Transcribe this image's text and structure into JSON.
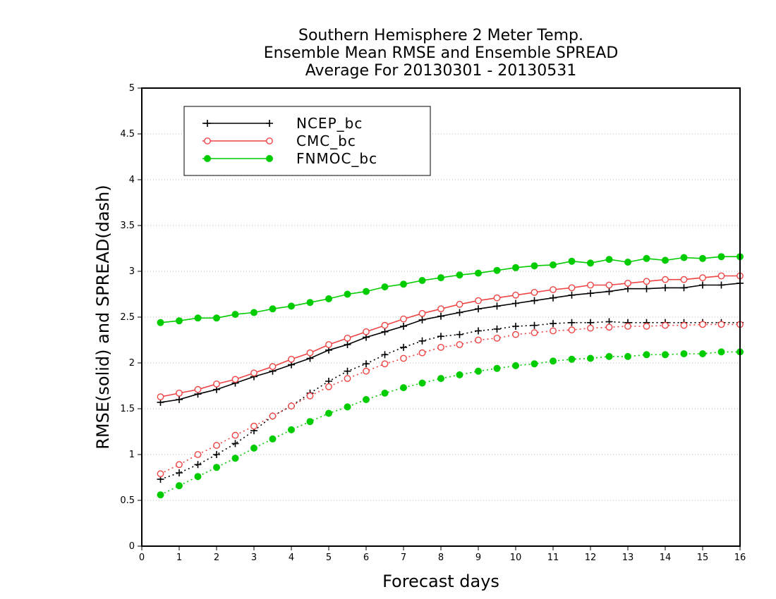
{
  "chart_data": {
    "type": "line",
    "title_lines": [
      "Southern Hemisphere 2 Meter Temp.",
      "Ensemble Mean RMSE and Ensemble SPREAD",
      "Average For 20130301 - 20130531"
    ],
    "xlabel": "Forecast days",
    "ylabel": "RMSE(solid) and SPREAD(dash)",
    "xlim": [
      0,
      16
    ],
    "ylim": [
      0,
      5
    ],
    "xticks": [
      0,
      1,
      2,
      3,
      4,
      5,
      6,
      7,
      8,
      9,
      10,
      11,
      12,
      13,
      14,
      15,
      16
    ],
    "xtick_labels": [
      "0",
      "1",
      "2",
      "3",
      "4",
      "5",
      "6",
      "7",
      "8",
      "9",
      "10",
      "11",
      "12",
      "13",
      "14",
      "15",
      "16"
    ],
    "yticks": [
      0,
      0.5,
      1,
      1.5,
      2,
      2.5,
      3,
      3.5,
      4,
      4.5,
      5
    ],
    "ytick_labels": [
      "0",
      "0.5",
      "1",
      "1.5",
      "2",
      "2.5",
      "3",
      "3.5",
      "4",
      "4.5",
      "5"
    ],
    "grid": "horizontal dotted",
    "legend_position": "top-left",
    "x": [
      0.5,
      1,
      1.5,
      2,
      2.5,
      3,
      3.5,
      4,
      4.5,
      5,
      5.5,
      6,
      6.5,
      7,
      7.5,
      8,
      8.5,
      9,
      9.5,
      10,
      10.5,
      11,
      11.5,
      12,
      12.5,
      13,
      13.5,
      14,
      14.5,
      15,
      15.5,
      16
    ],
    "series": [
      {
        "name": "NCEP_bc",
        "color": "#000000",
        "marker": "plus",
        "rmse": [
          1.57,
          1.6,
          1.66,
          1.71,
          1.78,
          1.85,
          1.91,
          1.98,
          2.05,
          2.14,
          2.2,
          2.28,
          2.34,
          2.4,
          2.47,
          2.51,
          2.55,
          2.59,
          2.62,
          2.65,
          2.68,
          2.71,
          2.74,
          2.76,
          2.78,
          2.81,
          2.81,
          2.82,
          2.82,
          2.85,
          2.85,
          2.87
        ],
        "spread": [
          0.73,
          0.8,
          0.89,
          1.0,
          1.12,
          1.26,
          1.42,
          1.53,
          1.67,
          1.8,
          1.91,
          1.99,
          2.09,
          2.17,
          2.24,
          2.29,
          2.31,
          2.35,
          2.37,
          2.4,
          2.41,
          2.43,
          2.44,
          2.44,
          2.45,
          2.44,
          2.44,
          2.44,
          2.44,
          2.44,
          2.44,
          2.44
        ]
      },
      {
        "name": "CMC_bc",
        "color": "#ee4444",
        "marker": "open-circle",
        "rmse": [
          1.63,
          1.67,
          1.71,
          1.77,
          1.82,
          1.89,
          1.96,
          2.04,
          2.11,
          2.2,
          2.27,
          2.34,
          2.41,
          2.48,
          2.54,
          2.59,
          2.64,
          2.68,
          2.71,
          2.74,
          2.77,
          2.8,
          2.82,
          2.85,
          2.85,
          2.87,
          2.89,
          2.91,
          2.91,
          2.93,
          2.95,
          2.95
        ],
        "spread": [
          0.79,
          0.89,
          1.0,
          1.1,
          1.21,
          1.31,
          1.42,
          1.53,
          1.64,
          1.74,
          1.83,
          1.91,
          1.99,
          2.05,
          2.11,
          2.17,
          2.2,
          2.25,
          2.27,
          2.31,
          2.33,
          2.35,
          2.36,
          2.38,
          2.39,
          2.4,
          2.4,
          2.41,
          2.41,
          2.42,
          2.42,
          2.42
        ]
      },
      {
        "name": "FNMOC_bc",
        "color": "#00cc00",
        "marker": "filled-circle",
        "rmse": [
          2.44,
          2.46,
          2.49,
          2.49,
          2.53,
          2.55,
          2.59,
          2.62,
          2.66,
          2.7,
          2.75,
          2.78,
          2.83,
          2.86,
          2.9,
          2.93,
          2.96,
          2.98,
          3.01,
          3.04,
          3.06,
          3.07,
          3.11,
          3.09,
          3.13,
          3.1,
          3.14,
          3.12,
          3.15,
          3.14,
          3.16,
          3.16
        ],
        "spread": [
          0.56,
          0.66,
          0.76,
          0.86,
          0.96,
          1.07,
          1.17,
          1.27,
          1.36,
          1.45,
          1.52,
          1.6,
          1.67,
          1.73,
          1.78,
          1.83,
          1.87,
          1.91,
          1.94,
          1.97,
          1.99,
          2.02,
          2.04,
          2.05,
          2.07,
          2.07,
          2.09,
          2.09,
          2.1,
          2.1,
          2.12,
          2.12
        ]
      }
    ]
  }
}
